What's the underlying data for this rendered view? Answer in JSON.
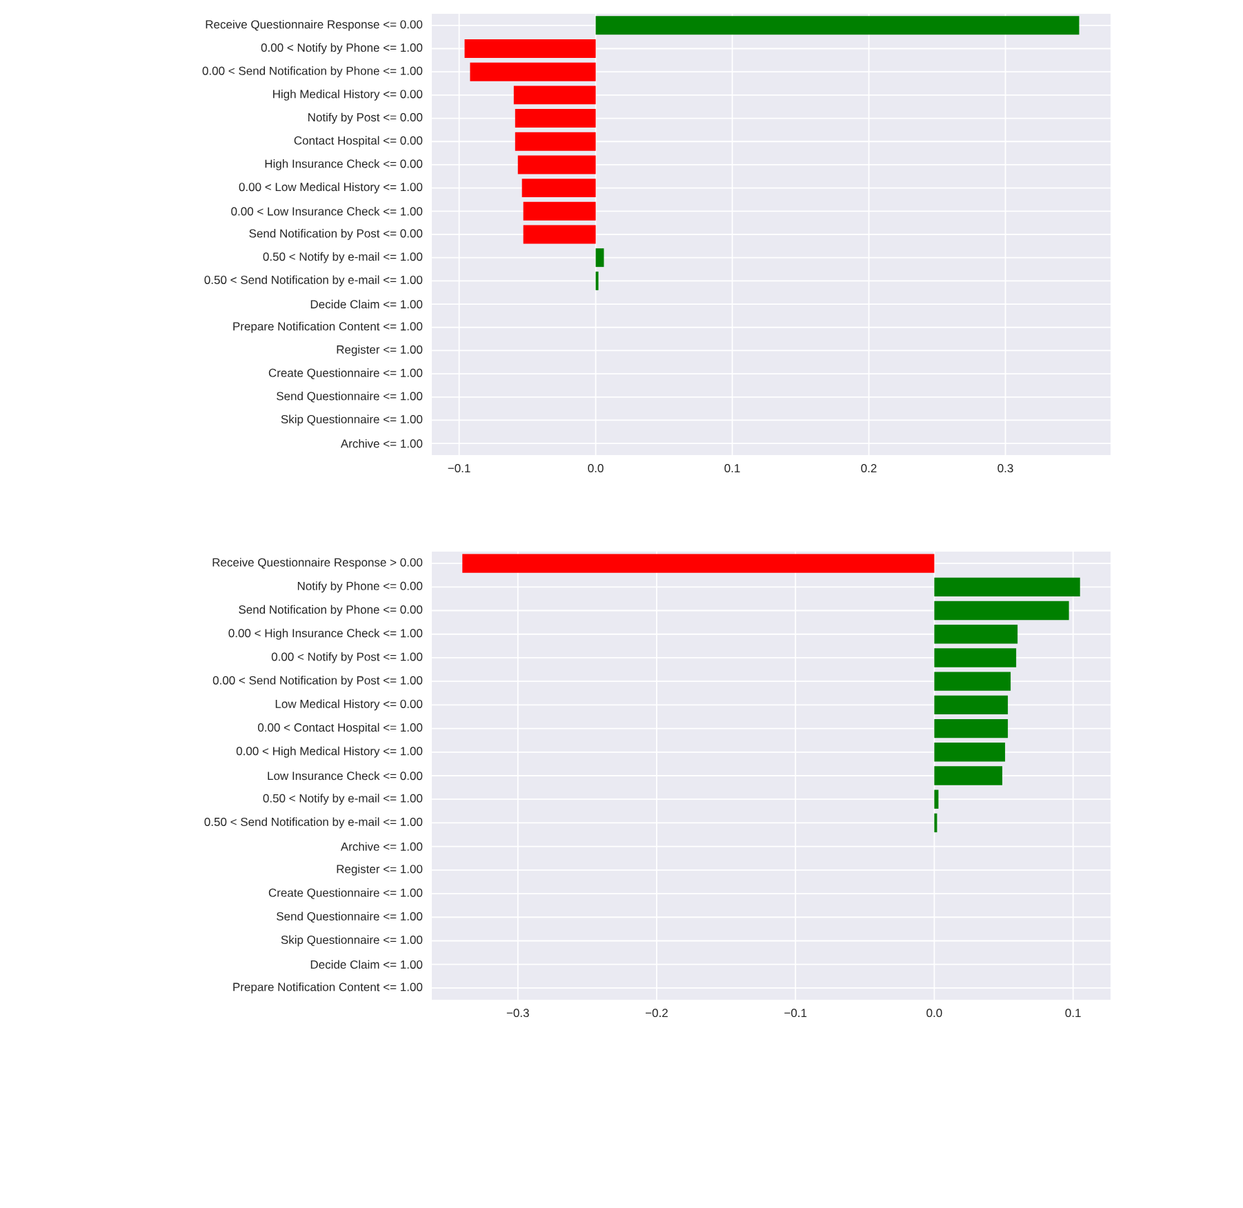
{
  "chart_data": [
    {
      "type": "bar",
      "orientation": "horizontal",
      "grid": true,
      "categories": [
        "Receive Questionnaire Response <= 0.00",
        "0.00 < Notify by Phone <= 1.00",
        "0.00 < Send Notification by Phone <= 1.00",
        "High Medical History <= 0.00",
        "Notify by Post <= 0.00",
        "Contact Hospital <= 0.00",
        "High Insurance Check <= 0.00",
        "0.00 < Low Medical History <= 1.00",
        "0.00 < Low Insurance Check <= 1.00",
        "Send Notification by Post <= 0.00",
        "0.50 < Notify by e-mail <= 1.00",
        "0.50 < Send Notification by e-mail <= 1.00",
        "Decide Claim <= 1.00",
        "Prepare Notification Content <= 1.00",
        "Register <= 1.00",
        "Create Questionnaire <= 1.00",
        "Send Questionnaire <= 1.00",
        "Skip Questionnaire <= 1.00",
        "Archive <= 1.00"
      ],
      "values": [
        0.354,
        -0.096,
        -0.092,
        -0.06,
        -0.059,
        -0.059,
        -0.057,
        -0.054,
        -0.053,
        -0.053,
        0.006,
        0.002,
        0,
        0,
        0,
        0,
        0,
        0,
        0
      ],
      "colors": [
        "#008000",
        "#ff0000",
        "#ff0000",
        "#ff0000",
        "#ff0000",
        "#ff0000",
        "#ff0000",
        "#ff0000",
        "#ff0000",
        "#ff0000",
        "#008000",
        "#008000",
        "#ff0000",
        "#ff0000",
        "#ff0000",
        "#ff0000",
        "#ff0000",
        "#ff0000",
        "#ff0000"
      ],
      "xlim": [
        -0.12,
        0.377
      ],
      "xticks": [
        {
          "value": -0.1,
          "label": "−0.1"
        },
        {
          "value": 0,
          "label": "0.0"
        },
        0.1,
        0.2,
        0.3
      ]
    },
    {
      "type": "bar",
      "orientation": "horizontal",
      "grid": true,
      "categories": [
        "Receive Questionnaire Response > 0.00",
        "Notify by Phone <= 0.00",
        "Send Notification by Phone <= 0.00",
        "0.00 < High Insurance Check <= 1.00",
        "0.00 < Notify by Post <= 1.00",
        "0.00 < Send Notification by Post <= 1.00",
        "Low Medical History <= 0.00",
        "0.00 < Contact Hospital <= 1.00",
        "0.00 < High Medical History <= 1.00",
        "Low Insurance Check <= 0.00",
        "0.50 < Notify by e-mail <= 1.00",
        "0.50 < Send Notification by e-mail <= 1.00",
        "Archive <= 1.00",
        "Register <= 1.00",
        "Create Questionnaire <= 1.00",
        "Send Questionnaire <= 1.00",
        "Skip Questionnaire <= 1.00",
        "Decide Claim <= 1.00",
        "Prepare Notification Content <= 1.00"
      ],
      "values": [
        -0.34,
        0.105,
        0.097,
        0.06,
        0.059,
        0.055,
        0.053,
        0.053,
        0.051,
        0.049,
        0.003,
        0.002,
        0,
        0,
        0,
        0,
        0,
        0,
        0
      ],
      "colors": [
        "#ff0000",
        "#008000",
        "#008000",
        "#008000",
        "#008000",
        "#008000",
        "#008000",
        "#008000",
        "#008000",
        "#008000",
        "#008000",
        "#008000",
        "#ff0000",
        "#ff0000",
        "#ff0000",
        "#ff0000",
        "#ff0000",
        "#ff0000",
        "#ff0000"
      ],
      "xlim": [
        -0.362,
        0.127
      ],
      "xticks": [
        {
          "value": -0.3,
          "label": "−0.3"
        },
        {
          "value": -0.2,
          "label": "−0.2"
        },
        {
          "value": -0.1,
          "label": "−0.1"
        },
        {
          "value": 0,
          "label": "0.0"
        },
        0.1
      ]
    }
  ]
}
